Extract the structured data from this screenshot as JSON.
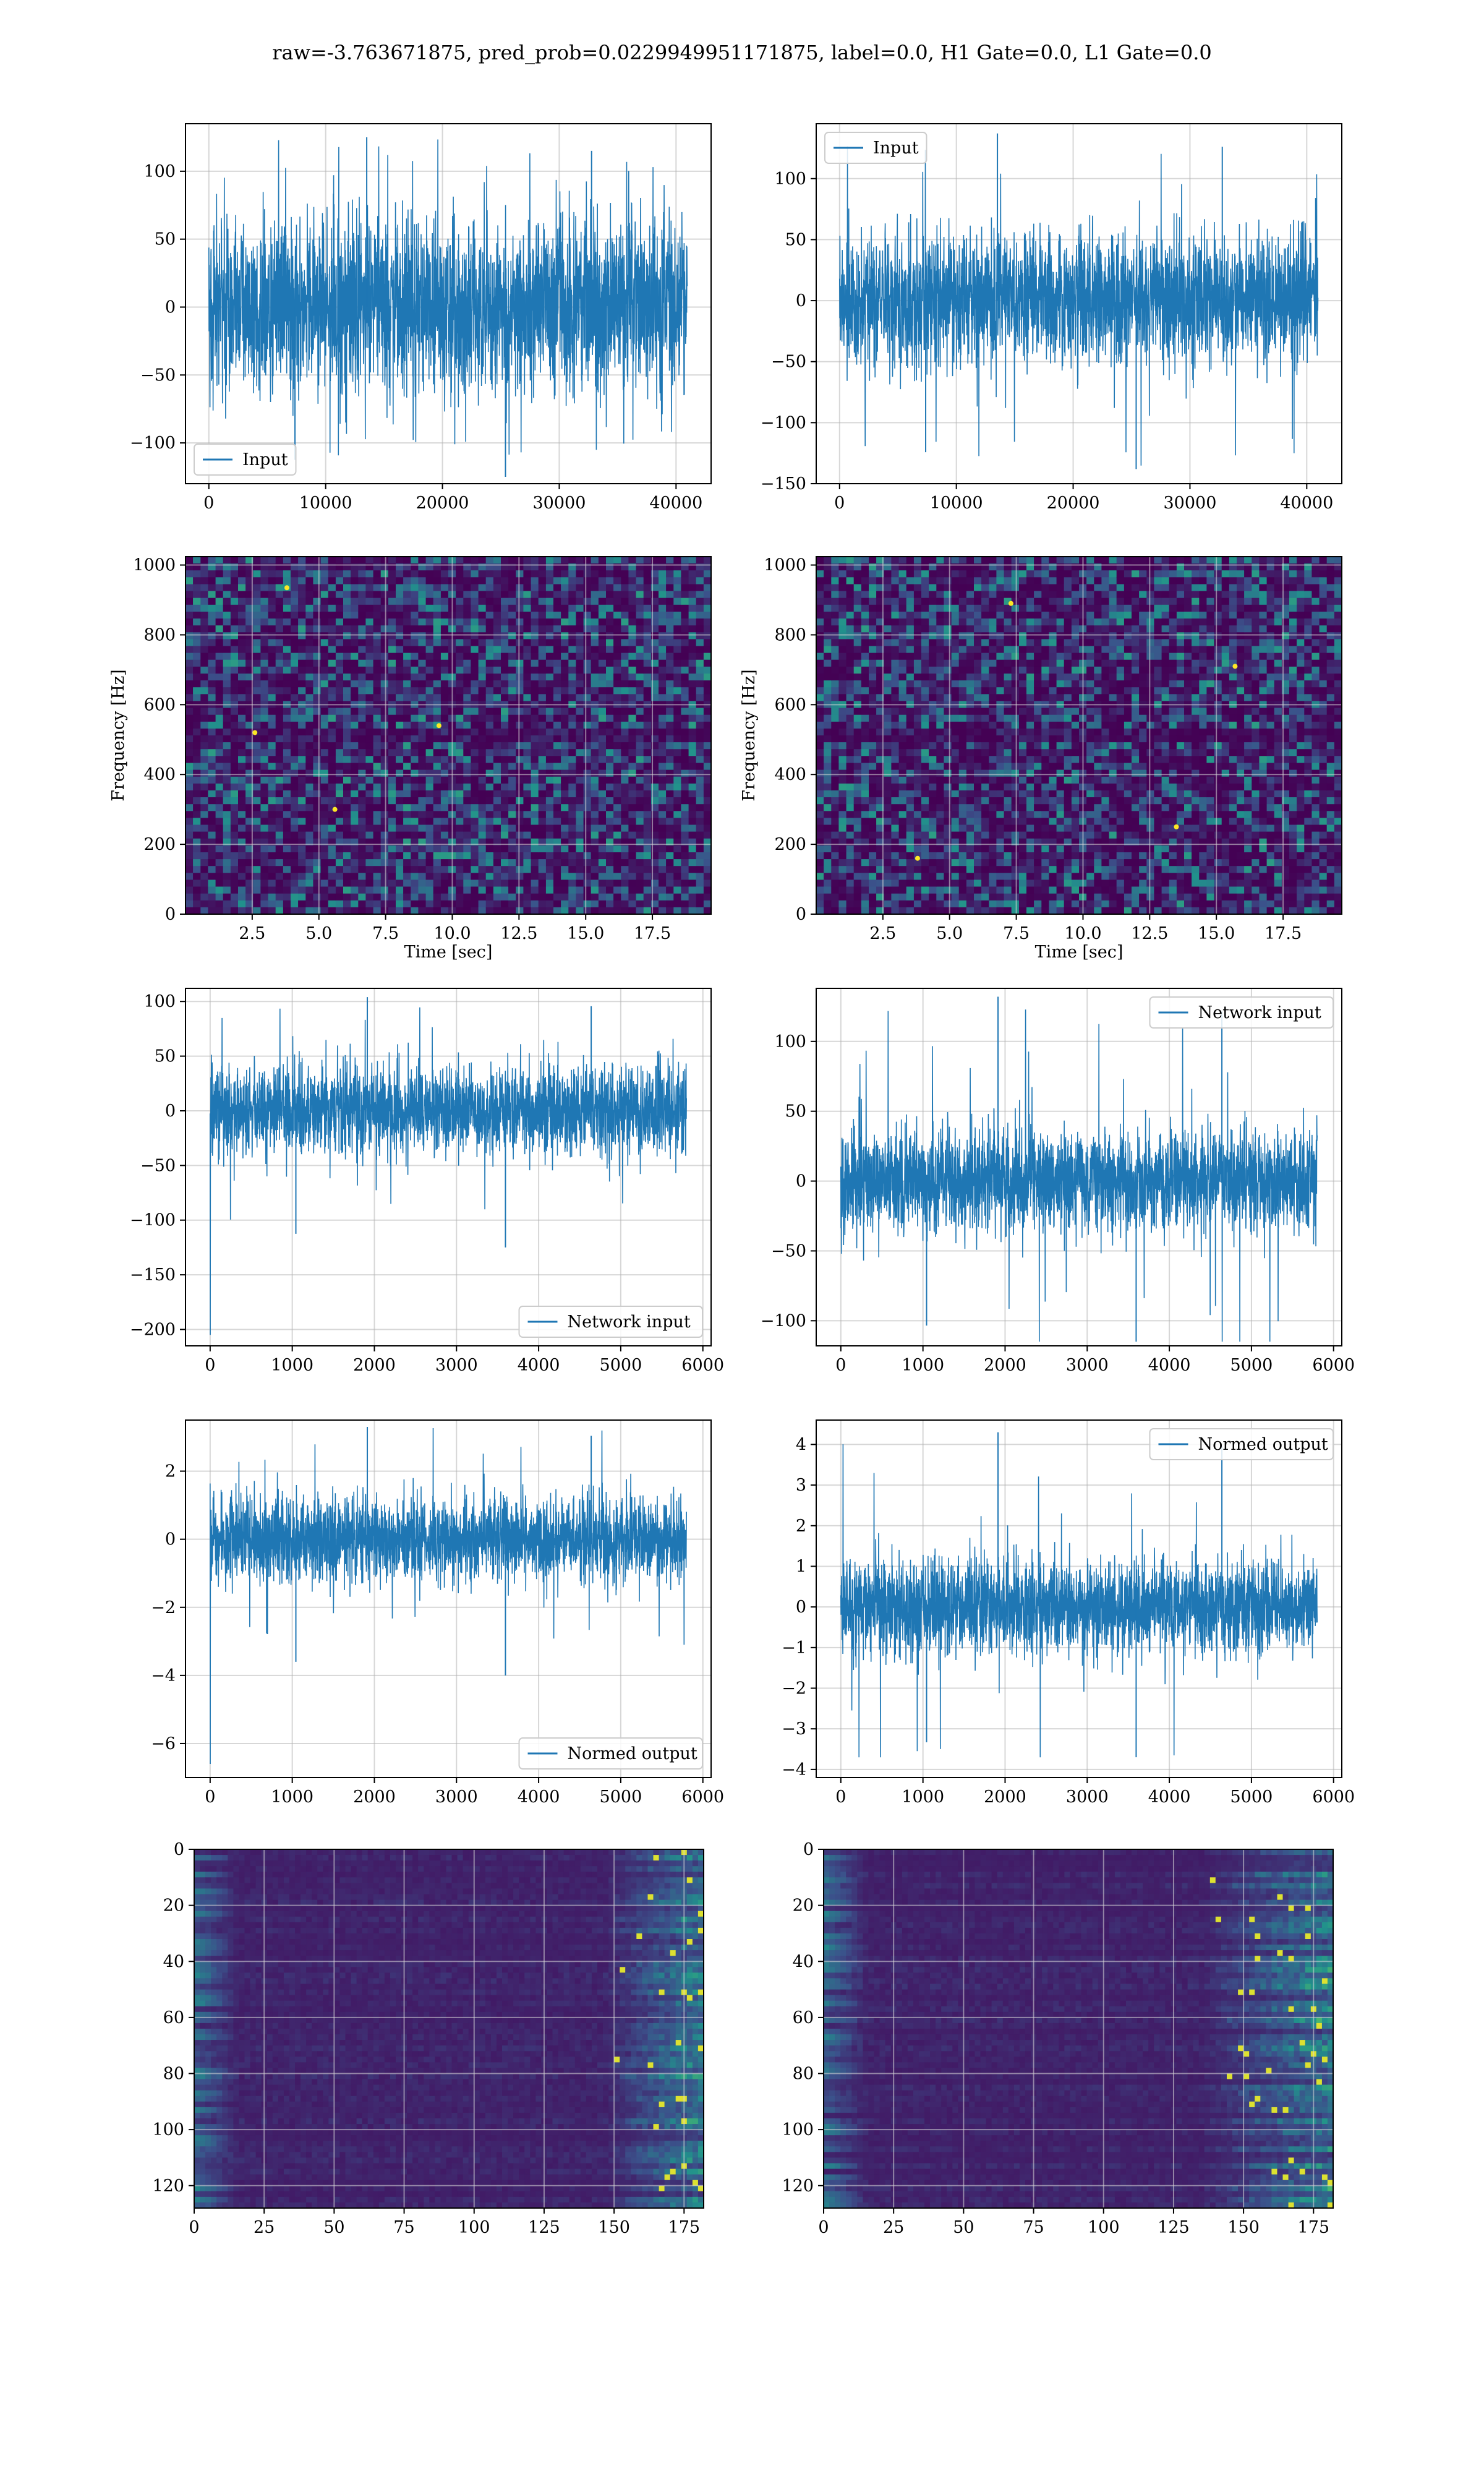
{
  "figure": {
    "suptitle": "raw=-3.763671875, pred_prob=0.0229949951171875, label=0.0, H1 Gate=0.0, L1 Gate=0.0",
    "colors": {
      "line": "#1f77b4",
      "grid": "#b0b0b0",
      "viridis_low": "#440154",
      "viridis_high": "#fde725"
    }
  },
  "chart_data": [
    {
      "id": "h1-input",
      "type": "line",
      "legend": "Input",
      "legend_loc": "lower left",
      "grid": true,
      "xlim": [
        -2000,
        43000
      ],
      "ylim": [
        -130,
        135
      ],
      "xticks": [
        0,
        10000,
        20000,
        30000,
        40000
      ],
      "yticks": [
        -100,
        -50,
        0,
        50,
        100
      ],
      "series": [
        {
          "name": "Input",
          "x_start": 0,
          "x_end": 40960,
          "envelope_min": -125,
          "envelope_max": 125,
          "typical_band": [
            -70,
            70
          ]
        }
      ]
    },
    {
      "id": "l1-input",
      "type": "line",
      "legend": "Input",
      "legend_loc": "upper left",
      "grid": true,
      "xlim": [
        -2000,
        43000
      ],
      "ylim": [
        -150,
        145
      ],
      "xticks": [
        0,
        10000,
        20000,
        30000,
        40000
      ],
      "yticks": [
        -150,
        -100,
        -50,
        0,
        50,
        100
      ],
      "series": [
        {
          "name": "Input",
          "x_start": 0,
          "x_end": 40960,
          "envelope_min": -138,
          "envelope_max": 137,
          "typical_band": [
            -60,
            60
          ]
        }
      ]
    },
    {
      "id": "h1-spectrogram",
      "type": "heatmap",
      "colormap": "viridis",
      "grid": true,
      "xlabel": "Time [sec]",
      "ylabel": "Frequency [Hz]",
      "xlim": [
        0,
        19.7
      ],
      "ylim": [
        0,
        1024
      ],
      "xticks": [
        2.5,
        5.0,
        7.5,
        10.0,
        12.5,
        15.0,
        17.5
      ],
      "yticks": [
        0,
        200,
        400,
        600,
        800,
        1000
      ],
      "hotspots": [
        [
          3.8,
          935
        ],
        [
          5.6,
          300
        ],
        [
          2.6,
          520
        ],
        [
          9.5,
          540
        ]
      ]
    },
    {
      "id": "l1-spectrogram",
      "type": "heatmap",
      "colormap": "viridis",
      "grid": true,
      "xlabel": "Time [sec]",
      "ylabel": "Frequency [Hz]",
      "xlim": [
        0,
        19.7
      ],
      "ylim": [
        0,
        1024
      ],
      "xticks": [
        2.5,
        5.0,
        7.5,
        10.0,
        12.5,
        15.0,
        17.5
      ],
      "yticks": [
        0,
        200,
        400,
        600,
        800,
        1000
      ],
      "hotspots": [
        [
          3.8,
          160
        ],
        [
          15.7,
          710
        ],
        [
          13.5,
          250
        ],
        [
          7.3,
          890
        ]
      ]
    },
    {
      "id": "h1-network-input",
      "type": "line",
      "legend": "Network input",
      "legend_loc": "lower right",
      "grid": true,
      "xlim": [
        -300,
        6100
      ],
      "ylim": [
        -215,
        112
      ],
      "xticks": [
        0,
        1000,
        2000,
        3000,
        4000,
        5000,
        6000
      ],
      "yticks": [
        -200,
        -150,
        -100,
        -50,
        0,
        50,
        100
      ],
      "series": [
        {
          "name": "Network input",
          "x_start": 0,
          "x_end": 5800,
          "envelope_min": -125,
          "envelope_max": 104,
          "typical_band": [
            -45,
            45
          ],
          "initial_spike": -205
        }
      ]
    },
    {
      "id": "l1-network-input",
      "type": "line",
      "legend": "Network input",
      "legend_loc": "upper right",
      "grid": true,
      "xlim": [
        -300,
        6100
      ],
      "ylim": [
        -118,
        138
      ],
      "xticks": [
        0,
        1000,
        2000,
        3000,
        4000,
        5000,
        6000
      ],
      "yticks": [
        -100,
        -50,
        0,
        50,
        100
      ],
      "series": [
        {
          "name": "Network input",
          "x_start": 0,
          "x_end": 5800,
          "envelope_min": -115,
          "envelope_max": 132,
          "typical_band": [
            -42,
            42
          ]
        }
      ]
    },
    {
      "id": "h1-normed-output",
      "type": "line",
      "legend": "Normed output",
      "legend_loc": "lower right",
      "grid": true,
      "xlim": [
        -300,
        6100
      ],
      "ylim": [
        -7.0,
        3.5
      ],
      "xticks": [
        0,
        1000,
        2000,
        3000,
        4000,
        5000,
        6000
      ],
      "yticks": [
        -6,
        -4,
        -2,
        0,
        2
      ],
      "series": [
        {
          "name": "Normed output",
          "x_start": 0,
          "x_end": 5800,
          "envelope_min": -4.0,
          "envelope_max": 3.3,
          "typical_band": [
            -1.4,
            1.4
          ],
          "initial_spike": -6.6
        }
      ]
    },
    {
      "id": "l1-normed-output",
      "type": "line",
      "legend": "Normed output",
      "legend_loc": "upper right",
      "grid": true,
      "xlim": [
        -300,
        6100
      ],
      "ylim": [
        -4.2,
        4.6
      ],
      "xticks": [
        0,
        1000,
        2000,
        3000,
        4000,
        5000,
        6000
      ],
      "yticks": [
        -4,
        -3,
        -2,
        -1,
        0,
        1,
        2,
        3,
        4
      ],
      "series": [
        {
          "name": "Normed output",
          "x_start": 0,
          "x_end": 5800,
          "envelope_min": -3.7,
          "envelope_max": 4.3,
          "typical_band": [
            -1.3,
            1.3
          ]
        }
      ]
    },
    {
      "id": "h1-feature-map",
      "type": "heatmap",
      "colormap": "viridis",
      "grid": true,
      "xlim": [
        0,
        182
      ],
      "ylim": [
        128,
        0
      ],
      "xticks": [
        0,
        25,
        50,
        75,
        100,
        125,
        150,
        175
      ],
      "yticks": [
        0,
        20,
        40,
        60,
        80,
        100,
        120
      ],
      "bright_region": "right edge, columns 150-182"
    },
    {
      "id": "l1-feature-map",
      "type": "heatmap",
      "colormap": "viridis",
      "grid": true,
      "xlim": [
        0,
        182
      ],
      "ylim": [
        128,
        0
      ],
      "xticks": [
        0,
        25,
        50,
        75,
        100,
        125,
        150,
        175
      ],
      "yticks": [
        0,
        20,
        40,
        60,
        80,
        100,
        120
      ],
      "bright_region": "right edge, columns 140-182"
    }
  ]
}
